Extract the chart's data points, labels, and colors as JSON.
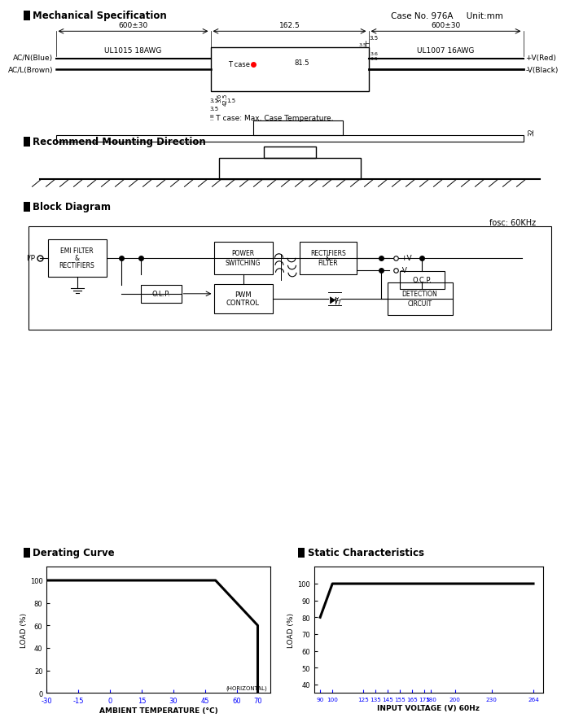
{
  "bg_color": "#ffffff",
  "text_color": "#000000",
  "mech_case_no": "Case No. 976A     Unit:mm",
  "mech_dim_top": "600±30",
  "mech_dim_mid": "162.5",
  "mech_dim_right": "600±30",
  "mech_tcase": "T case",
  "mech_ul1015": "UL1015 18AWG",
  "mech_ul1007": "UL1007 16AWG",
  "mech_acn": "AC/N(Blue)",
  "mech_acl": "AC/L(Brown)",
  "mech_vred": "+V(Red)",
  "mech_vblack": "-V(Black)",
  "mech_note": "‼ T case: Max. Case Temperature.",
  "derating_line_x": [
    -30,
    50,
    70,
    70
  ],
  "derating_line_y": [
    100,
    100,
    60,
    0
  ],
  "derating_xticks": [
    -30,
    -15,
    0,
    15,
    30,
    45,
    60,
    70
  ],
  "derating_yticks": [
    0,
    20,
    40,
    60,
    80,
    100
  ],
  "derating_xlabel": "AMBIENT TEMPERATURE (°C)",
  "derating_ylabel": "LOAD (%)",
  "static_line_x": [
    90,
    100,
    125,
    135,
    145,
    155,
    165,
    175,
    180,
    200,
    230,
    264
  ],
  "static_line_y": [
    80,
    100,
    100,
    100,
    100,
    100,
    100,
    100,
    100,
    100,
    100,
    100
  ],
  "static_xticks": [
    90,
    100,
    125,
    135,
    145,
    155,
    165,
    175,
    180,
    200,
    230,
    264
  ],
  "static_yticks": [
    40,
    50,
    60,
    70,
    80,
    90,
    100
  ],
  "static_xlabel": "INPUT VOLTAGE (V) 60Hz",
  "static_ylabel": "LOAD (%)"
}
